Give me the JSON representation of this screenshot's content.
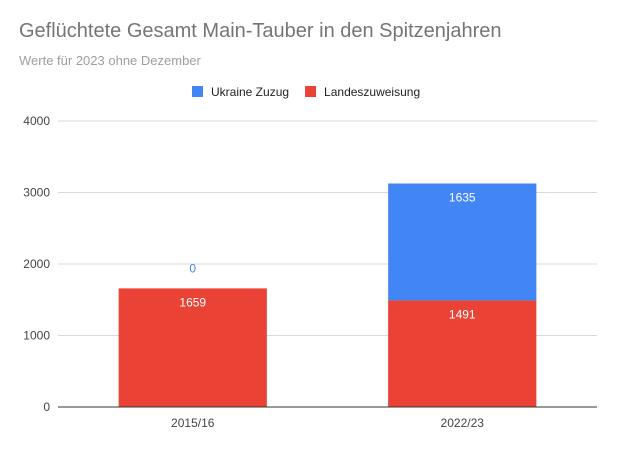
{
  "chart_data": {
    "type": "bar",
    "stacked": true,
    "title": "Geflüchtete Gesamt Main-Tauber in den Spitzenjahren",
    "subtitle": "Werte für 2023 ohne Dezember",
    "categories": [
      "2015/16",
      "2022/23"
    ],
    "series": [
      {
        "name": "Landeszuweisung",
        "values": [
          1659,
          1491
        ],
        "color": "#ea4335"
      },
      {
        "name": "Ukraine Zuzug",
        "values": [
          0,
          1635
        ],
        "color": "#4285f4"
      }
    ],
    "legend_order": [
      "Ukraine Zuzug",
      "Landeszuweisung"
    ],
    "legend_position": "top",
    "ylim": [
      0,
      4000
    ],
    "yticks": [
      0,
      1000,
      2000,
      3000,
      4000
    ],
    "grid": true,
    "xlabel": "",
    "ylabel": ""
  }
}
